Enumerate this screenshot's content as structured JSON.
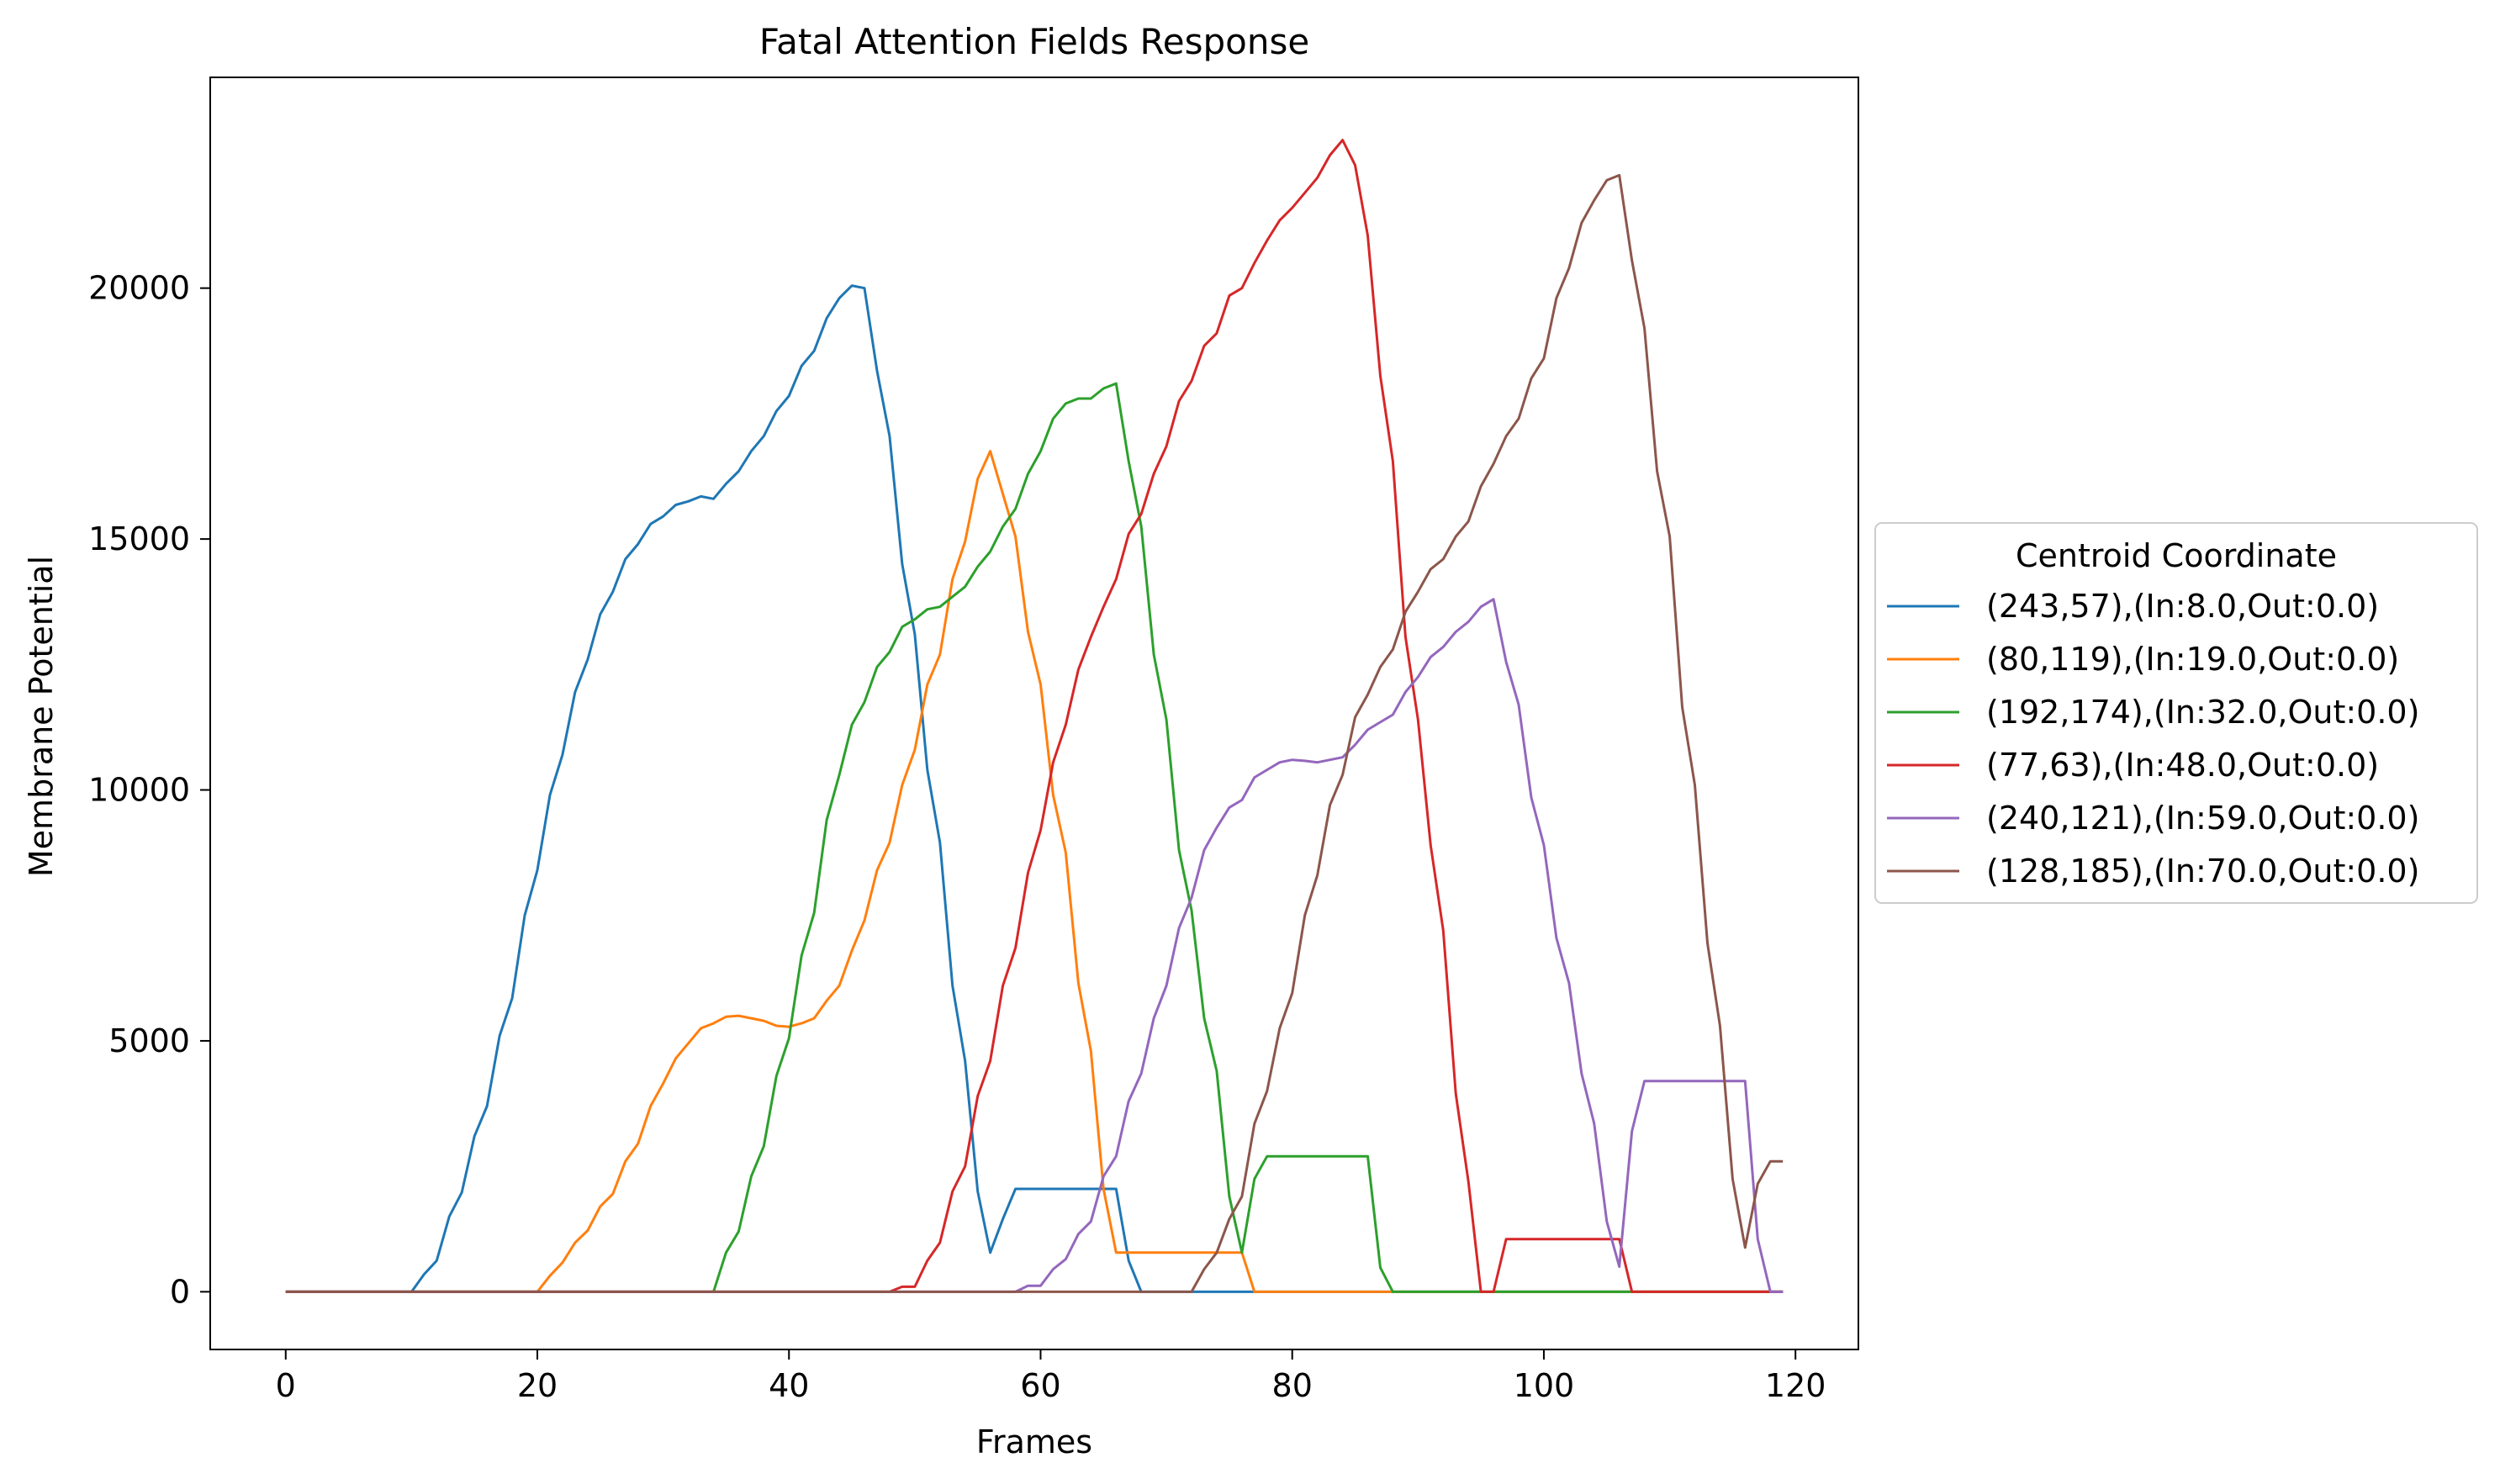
{
  "chart_data": {
    "type": "line",
    "title": "Fatal Attention Fields Response",
    "xlabel": "Frames",
    "ylabel": "Membrane Potential",
    "xlim": [
      -6,
      125
    ],
    "ylim": [
      -1150,
      24200
    ],
    "xticks": [
      0,
      20,
      40,
      60,
      80,
      100,
      120
    ],
    "yticks": [
      0,
      5000,
      10000,
      15000,
      20000
    ],
    "grid": false,
    "legend": {
      "title": "Centroid Coordinate",
      "placement": "center-right outside"
    },
    "series": [
      {
        "name": "(243,57),(In:8.0,Out:0.0)",
        "color": "#1f77b4",
        "points": [
          [
            0,
            0
          ],
          [
            10,
            0
          ],
          [
            11,
            350
          ],
          [
            12,
            620
          ],
          [
            13,
            1500
          ],
          [
            14,
            1980
          ],
          [
            15,
            3100
          ],
          [
            16,
            3700
          ],
          [
            17,
            5100
          ],
          [
            18,
            5850
          ],
          [
            19,
            7500
          ],
          [
            20,
            8400
          ],
          [
            21,
            9900
          ],
          [
            22,
            10700
          ],
          [
            23,
            11950
          ],
          [
            24,
            12600
          ],
          [
            25,
            13500
          ],
          [
            26,
            13950
          ],
          [
            27,
            14600
          ],
          [
            28,
            14900
          ],
          [
            29,
            15300
          ],
          [
            30,
            15450
          ],
          [
            31,
            15680
          ],
          [
            32,
            15750
          ],
          [
            33,
            15850
          ],
          [
            34,
            15800
          ],
          [
            35,
            16100
          ],
          [
            36,
            16350
          ],
          [
            37,
            16750
          ],
          [
            38,
            17050
          ],
          [
            39,
            17550
          ],
          [
            40,
            17850
          ],
          [
            41,
            18450
          ],
          [
            42,
            18750
          ],
          [
            43,
            19400
          ],
          [
            44,
            19800
          ],
          [
            45,
            20050
          ],
          [
            46,
            20000
          ],
          [
            47,
            18350
          ],
          [
            48,
            17050
          ],
          [
            49,
            14500
          ],
          [
            50,
            13100
          ],
          [
            51,
            10400
          ],
          [
            52,
            8950
          ],
          [
            53,
            6100
          ],
          [
            54,
            4600
          ],
          [
            55,
            2000
          ],
          [
            56,
            780
          ],
          [
            57,
            1450
          ],
          [
            58,
            2050
          ],
          [
            66,
            2050
          ],
          [
            67,
            620
          ],
          [
            68,
            0
          ],
          [
            119,
            0
          ]
        ]
      },
      {
        "name": "(80,119),(In:19.0,Out:0.0)",
        "color": "#ff7f0e",
        "points": [
          [
            0,
            0
          ],
          [
            20,
            0
          ],
          [
            21,
            320
          ],
          [
            22,
            580
          ],
          [
            23,
            980
          ],
          [
            24,
            1220
          ],
          [
            25,
            1700
          ],
          [
            26,
            1950
          ],
          [
            27,
            2600
          ],
          [
            28,
            2950
          ],
          [
            29,
            3700
          ],
          [
            30,
            4150
          ],
          [
            31,
            4650
          ],
          [
            32,
            4950
          ],
          [
            33,
            5250
          ],
          [
            34,
            5350
          ],
          [
            35,
            5480
          ],
          [
            36,
            5500
          ],
          [
            37,
            5450
          ],
          [
            38,
            5400
          ],
          [
            39,
            5300
          ],
          [
            40,
            5280
          ],
          [
            41,
            5350
          ],
          [
            42,
            5450
          ],
          [
            43,
            5800
          ],
          [
            44,
            6100
          ],
          [
            45,
            6800
          ],
          [
            46,
            7400
          ],
          [
            47,
            8400
          ],
          [
            48,
            8950
          ],
          [
            49,
            10100
          ],
          [
            50,
            10800
          ],
          [
            51,
            12100
          ],
          [
            52,
            12700
          ],
          [
            53,
            14200
          ],
          [
            54,
            14950
          ],
          [
            55,
            16200
          ],
          [
            56,
            16750
          ],
          [
            57,
            15900
          ],
          [
            58,
            15050
          ],
          [
            59,
            13150
          ],
          [
            60,
            12100
          ],
          [
            61,
            9900
          ],
          [
            62,
            8750
          ],
          [
            63,
            6150
          ],
          [
            64,
            4800
          ],
          [
            65,
            2050
          ],
          [
            66,
            780
          ],
          [
            76,
            780
          ],
          [
            77,
            0
          ],
          [
            119,
            0
          ]
        ]
      },
      {
        "name": "(192,174),(In:32.0,Out:0.0)",
        "color": "#2ca02c",
        "points": [
          [
            0,
            0
          ],
          [
            34,
            0
          ],
          [
            35,
            780
          ],
          [
            36,
            1200
          ],
          [
            37,
            2300
          ],
          [
            38,
            2900
          ],
          [
            39,
            4300
          ],
          [
            40,
            5050
          ],
          [
            41,
            6700
          ],
          [
            42,
            7550
          ],
          [
            43,
            9400
          ],
          [
            44,
            10300
          ],
          [
            45,
            11300
          ],
          [
            46,
            11750
          ],
          [
            47,
            12450
          ],
          [
            48,
            12750
          ],
          [
            49,
            13250
          ],
          [
            50,
            13400
          ],
          [
            51,
            13600
          ],
          [
            52,
            13650
          ],
          [
            53,
            13850
          ],
          [
            54,
            14050
          ],
          [
            55,
            14450
          ],
          [
            56,
            14750
          ],
          [
            57,
            15250
          ],
          [
            58,
            15600
          ],
          [
            59,
            16300
          ],
          [
            60,
            16750
          ],
          [
            61,
            17400
          ],
          [
            62,
            17700
          ],
          [
            63,
            17800
          ],
          [
            64,
            17800
          ],
          [
            65,
            18000
          ],
          [
            66,
            18100
          ],
          [
            67,
            16550
          ],
          [
            68,
            15250
          ],
          [
            69,
            12700
          ],
          [
            70,
            11400
          ],
          [
            71,
            8800
          ],
          [
            72,
            7600
          ],
          [
            73,
            5450
          ],
          [
            74,
            4400
          ],
          [
            75,
            1900
          ],
          [
            76,
            780
          ],
          [
            77,
            2250
          ],
          [
            78,
            2700
          ],
          [
            86,
            2700
          ],
          [
            87,
            480
          ],
          [
            88,
            0
          ],
          [
            119,
            0
          ]
        ]
      },
      {
        "name": "(77,63),(In:48.0,Out:0.0)",
        "color": "#d62728",
        "points": [
          [
            0,
            0
          ],
          [
            48,
            0
          ],
          [
            49,
            100
          ],
          [
            50,
            100
          ],
          [
            51,
            620
          ],
          [
            52,
            980
          ],
          [
            53,
            2000
          ],
          [
            54,
            2500
          ],
          [
            55,
            3900
          ],
          [
            56,
            4600
          ],
          [
            57,
            6100
          ],
          [
            58,
            6850
          ],
          [
            59,
            8350
          ],
          [
            60,
            9200
          ],
          [
            61,
            10550
          ],
          [
            62,
            11300
          ],
          [
            63,
            12400
          ],
          [
            64,
            13050
          ],
          [
            65,
            13650
          ],
          [
            66,
            14200
          ],
          [
            67,
            15100
          ],
          [
            68,
            15500
          ],
          [
            69,
            16300
          ],
          [
            70,
            16850
          ],
          [
            71,
            17750
          ],
          [
            72,
            18150
          ],
          [
            73,
            18850
          ],
          [
            74,
            19100
          ],
          [
            75,
            19850
          ],
          [
            76,
            20000
          ],
          [
            77,
            20500
          ],
          [
            78,
            20950
          ],
          [
            79,
            21350
          ],
          [
            80,
            21600
          ],
          [
            81,
            21900
          ],
          [
            82,
            22200
          ],
          [
            83,
            22650
          ],
          [
            84,
            22950
          ],
          [
            85,
            22450
          ],
          [
            86,
            21050
          ],
          [
            87,
            18250
          ],
          [
            88,
            16550
          ],
          [
            89,
            13050
          ],
          [
            90,
            11400
          ],
          [
            91,
            8900
          ],
          [
            92,
            7200
          ],
          [
            93,
            3950
          ],
          [
            94,
            2200
          ],
          [
            95,
            0
          ],
          [
            96,
            0
          ],
          [
            97,
            1050
          ],
          [
            106,
            1050
          ],
          [
            107,
            0
          ],
          [
            119,
            0
          ]
        ]
      },
      {
        "name": "(240,121),(In:59.0,Out:0.0)",
        "color": "#9467bd",
        "points": [
          [
            0,
            0
          ],
          [
            58,
            0
          ],
          [
            59,
            120
          ],
          [
            60,
            120
          ],
          [
            61,
            450
          ],
          [
            62,
            650
          ],
          [
            63,
            1150
          ],
          [
            64,
            1400
          ],
          [
            65,
            2300
          ],
          [
            66,
            2700
          ],
          [
            67,
            3800
          ],
          [
            68,
            4350
          ],
          [
            69,
            5450
          ],
          [
            70,
            6100
          ],
          [
            71,
            7250
          ],
          [
            72,
            7850
          ],
          [
            73,
            8800
          ],
          [
            74,
            9250
          ],
          [
            75,
            9650
          ],
          [
            76,
            9800
          ],
          [
            77,
            10250
          ],
          [
            78,
            10400
          ],
          [
            79,
            10550
          ],
          [
            80,
            10600
          ],
          [
            81,
            10580
          ],
          [
            82,
            10550
          ],
          [
            83,
            10600
          ],
          [
            84,
            10650
          ],
          [
            85,
            10900
          ],
          [
            86,
            11200
          ],
          [
            87,
            11350
          ],
          [
            88,
            11500
          ],
          [
            89,
            11950
          ],
          [
            90,
            12250
          ],
          [
            91,
            12650
          ],
          [
            92,
            12850
          ],
          [
            93,
            13150
          ],
          [
            94,
            13350
          ],
          [
            95,
            13650
          ],
          [
            96,
            13800
          ],
          [
            97,
            12550
          ],
          [
            98,
            11700
          ],
          [
            99,
            9850
          ],
          [
            100,
            8900
          ],
          [
            101,
            7050
          ],
          [
            102,
            6150
          ],
          [
            103,
            4350
          ],
          [
            104,
            3350
          ],
          [
            105,
            1400
          ],
          [
            106,
            500
          ],
          [
            107,
            3200
          ],
          [
            108,
            4200
          ],
          [
            116,
            4200
          ],
          [
            117,
            1050
          ],
          [
            118,
            0
          ],
          [
            119,
            0
          ]
        ]
      },
      {
        "name": "(128,185),(In:70.0,Out:0.0)",
        "color": "#8c564b",
        "points": [
          [
            0,
            0
          ],
          [
            72,
            0
          ],
          [
            73,
            450
          ],
          [
            74,
            780
          ],
          [
            75,
            1450
          ],
          [
            76,
            1900
          ],
          [
            77,
            3350
          ],
          [
            78,
            4000
          ],
          [
            79,
            5250
          ],
          [
            80,
            5950
          ],
          [
            81,
            7500
          ],
          [
            82,
            8300
          ],
          [
            83,
            9700
          ],
          [
            84,
            10300
          ],
          [
            85,
            11450
          ],
          [
            86,
            11900
          ],
          [
            87,
            12450
          ],
          [
            88,
            12800
          ],
          [
            89,
            13550
          ],
          [
            90,
            13950
          ],
          [
            91,
            14400
          ],
          [
            92,
            14600
          ],
          [
            93,
            15050
          ],
          [
            94,
            15350
          ],
          [
            95,
            16050
          ],
          [
            96,
            16500
          ],
          [
            97,
            17050
          ],
          [
            98,
            17400
          ],
          [
            99,
            18200
          ],
          [
            100,
            18600
          ],
          [
            101,
            19800
          ],
          [
            102,
            20400
          ],
          [
            103,
            21300
          ],
          [
            104,
            21750
          ],
          [
            105,
            22150
          ],
          [
            106,
            22250
          ],
          [
            107,
            20550
          ],
          [
            108,
            19200
          ],
          [
            109,
            16350
          ],
          [
            110,
            15050
          ],
          [
            111,
            11650
          ],
          [
            112,
            10100
          ],
          [
            113,
            6950
          ],
          [
            114,
            5300
          ],
          [
            115,
            2250
          ],
          [
            116,
            880
          ],
          [
            117,
            2150
          ],
          [
            118,
            2600
          ],
          [
            119,
            2600
          ]
        ]
      }
    ]
  }
}
